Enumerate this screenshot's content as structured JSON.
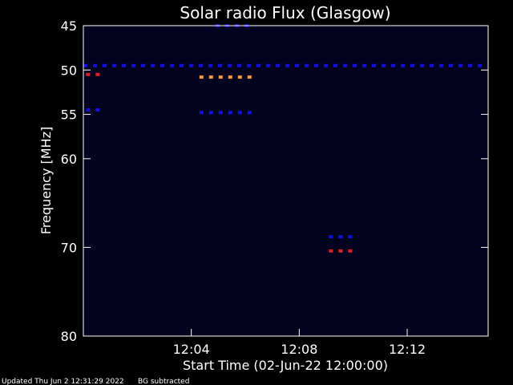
{
  "chart_data": {
    "type": "heatmap",
    "title": "Solar radio Flux (Glasgow)",
    "xlabel": "Start Time (02-Jun-22 12:00:00)",
    "ylabel": "Frequency [MHz]",
    "x_unit": "minutes after 12:00:00",
    "xlim": [
      0,
      15
    ],
    "ylim": [
      45,
      80
    ],
    "x_ticks": [
      {
        "value": 4,
        "label": "12:04"
      },
      {
        "value": 8,
        "label": "12:08"
      },
      {
        "value": 12,
        "label": "12:12"
      }
    ],
    "y_ticks": [
      {
        "value": 45,
        "label": "45"
      },
      {
        "value": 50,
        "label": "50"
      },
      {
        "value": 55,
        "label": "55"
      },
      {
        "value": 60,
        "label": "60"
      },
      {
        "value": 70,
        "label": "70"
      },
      {
        "value": 80,
        "label": "80"
      }
    ],
    "grid": false,
    "colors": {
      "background": "#000000",
      "plot_background": "#03031f",
      "axis": "#ffffff",
      "weak": "#1010e0",
      "medium": "#e02020",
      "strong": "#ff9a40"
    },
    "features": [
      {
        "t_start": 0.0,
        "t_end": 15.0,
        "freq": 49.5,
        "level": "weak"
      },
      {
        "t_start": 0.1,
        "t_end": 0.7,
        "freq": 50.5,
        "level": "medium"
      },
      {
        "t_start": 0.1,
        "t_end": 0.7,
        "freq": 54.5,
        "level": "weak"
      },
      {
        "t_start": 4.3,
        "t_end": 6.4,
        "freq": 50.8,
        "level": "strong"
      },
      {
        "t_start": 4.3,
        "t_end": 6.4,
        "freq": 54.8,
        "level": "weak"
      },
      {
        "t_start": 4.9,
        "t_end": 6.4,
        "freq": 45.0,
        "level": "weak"
      },
      {
        "t_start": 9.1,
        "t_end": 10.3,
        "freq": 68.8,
        "level": "weak"
      },
      {
        "t_start": 9.1,
        "t_end": 10.3,
        "freq": 70.4,
        "level": "medium"
      }
    ]
  },
  "footer": {
    "updated": "Updated Thu Jun  2 12:31:29 2022",
    "note": "BG subtracted"
  }
}
